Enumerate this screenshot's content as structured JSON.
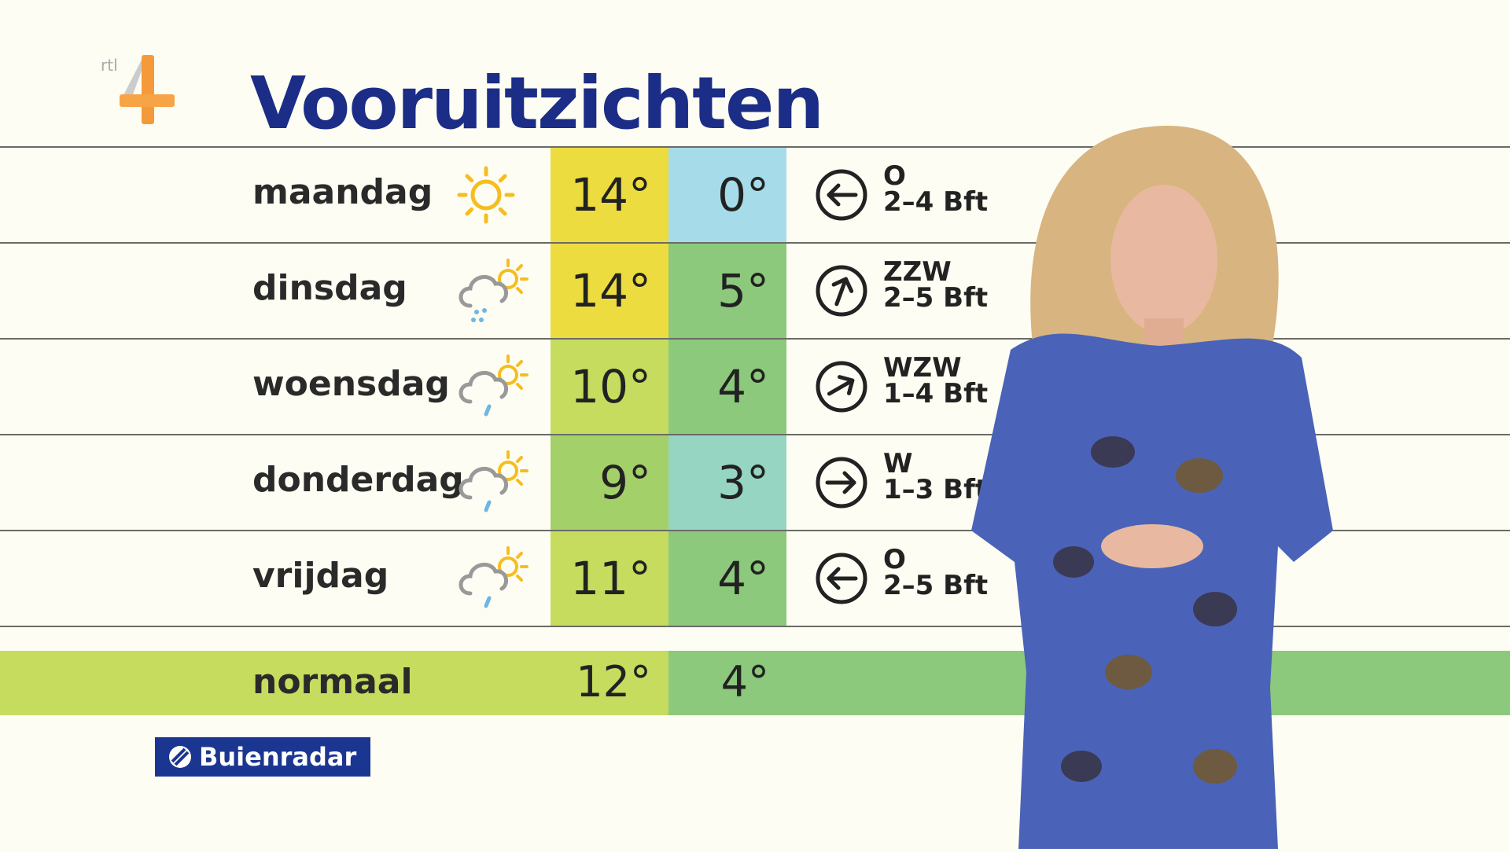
{
  "header": {
    "title": "Vooruitzichten",
    "channel_logo": "rtl 4"
  },
  "colors": {
    "title": "#1b2d86",
    "yellow": "#eddc3f",
    "light_blue": "#a6dcea",
    "green": "#8cc97c",
    "light_green": "#c6dc5e",
    "mid_green": "#a3d068",
    "teal": "#96d5c1"
  },
  "forecast": [
    {
      "day": "maandag",
      "icon": "sun-icon",
      "max": "14°",
      "min": "0°",
      "max_color": "#eddc3f",
      "min_color": "#a6dcea",
      "wind_direction": "O",
      "wind_force": "2–4 Bft",
      "wind_icon": "arrow-left-icon"
    },
    {
      "day": "dinsdag",
      "icon": "cloud-sun-rain-icon",
      "max": "14°",
      "min": "5°",
      "max_color": "#eddc3f",
      "min_color": "#8cc97c",
      "wind_direction": "ZZW",
      "wind_force": "2–5 Bft",
      "wind_icon": "arrow-up-right-icon"
    },
    {
      "day": "woensdag",
      "icon": "cloud-sun-drizzle-icon",
      "max": "10°",
      "min": "4°",
      "max_color": "#c6dc5e",
      "min_color": "#8cc97c",
      "wind_direction": "WZW",
      "wind_force": "1–4 Bft",
      "wind_icon": "arrow-up-right-icon"
    },
    {
      "day": "donderdag",
      "icon": "cloud-sun-drizzle-icon",
      "max": "9°",
      "min": "3°",
      "max_color": "#a3d068",
      "min_color": "#96d5c1",
      "wind_direction": "W",
      "wind_force": "1–3 Bft",
      "wind_icon": "arrow-right-icon"
    },
    {
      "day": "vrijdag",
      "icon": "cloud-sun-drizzle-icon",
      "max": "11°",
      "min": "4°",
      "max_color": "#c6dc5e",
      "min_color": "#8cc97c",
      "wind_direction": "O",
      "wind_force": "2–5 Bft",
      "wind_icon": "arrow-left-icon"
    }
  ],
  "normal": {
    "label": "normaal",
    "max": "12°",
    "min": "4°"
  },
  "sponsor": {
    "label": "Buienradar"
  }
}
